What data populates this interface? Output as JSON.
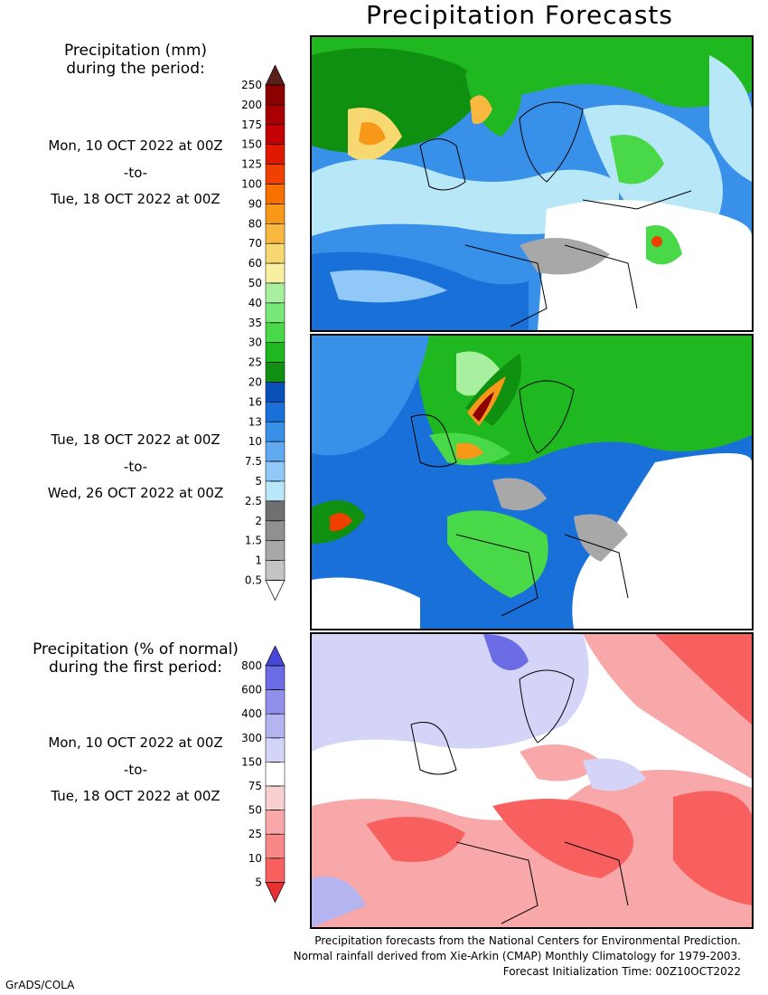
{
  "title": "Precipitation Forecasts",
  "precip_heading": [
    "Precipitation (mm)",
    "during the period:"
  ],
  "period1": {
    "start": "Mon, 10 OCT 2022 at 00Z",
    "sep": "-to-",
    "end": "Tue, 18 OCT 2022 at 00Z"
  },
  "period2": {
    "start": "Tue, 18 OCT 2022 at 00Z",
    "sep": "-to-",
    "end": "Wed, 26 OCT 2022 at 00Z"
  },
  "normal_heading": [
    "Precipitation (% of normal)",
    "during the first period:"
  ],
  "period3": {
    "start": "Mon, 10 OCT 2022 at 00Z",
    "sep": "-to-",
    "end": "Tue, 18 OCT 2022 at 00Z"
  },
  "mm_scale": {
    "labels": [
      "250",
      "200",
      "175",
      "150",
      "125",
      "100",
      "90",
      "80",
      "70",
      "60",
      "50",
      "40",
      "35",
      "30",
      "25",
      "20",
      "16",
      "13",
      "10",
      "7.5",
      "5",
      "2.5",
      "2",
      "1.5",
      "1",
      "0.5"
    ],
    "colors": [
      "#5a1f1a",
      "#8c0000",
      "#a80000",
      "#c40000",
      "#e01800",
      "#f04000",
      "#f87000",
      "#f89818",
      "#f8b840",
      "#f8d870",
      "#f8f0a0",
      "#a8f0a0",
      "#78e878",
      "#48d848",
      "#20b820",
      "#109010",
      "#0850b8",
      "#1870d8",
      "#3890e8",
      "#60a8f0",
      "#90c8f8",
      "#b8e8f8",
      "#707070",
      "#909090",
      "#a8a8a8",
      "#c4c4c4",
      "#ffffff"
    ]
  },
  "pct_scale": {
    "labels": [
      "800",
      "600",
      "400",
      "300",
      "150",
      "75",
      "50",
      "25",
      "10",
      "5"
    ],
    "colors": [
      "#4848d8",
      "#6c6ce4",
      "#9090ec",
      "#b4b4f0",
      "#d4d4f8",
      "#ffffff",
      "#f8d0d0",
      "#f8a8a8",
      "#f88888",
      "#f86060",
      "#e83030"
    ]
  },
  "footer": [
    "Precipitation forecasts from the National Centers for Environmental Prediction.",
    "Normal rainfall derived from Xie-Arkin (CMAP) Monthly Climatology for 1979-2003.",
    "Forecast Initialization Time: 00Z10OCT2022"
  ],
  "credit": "GrADS/COLA"
}
